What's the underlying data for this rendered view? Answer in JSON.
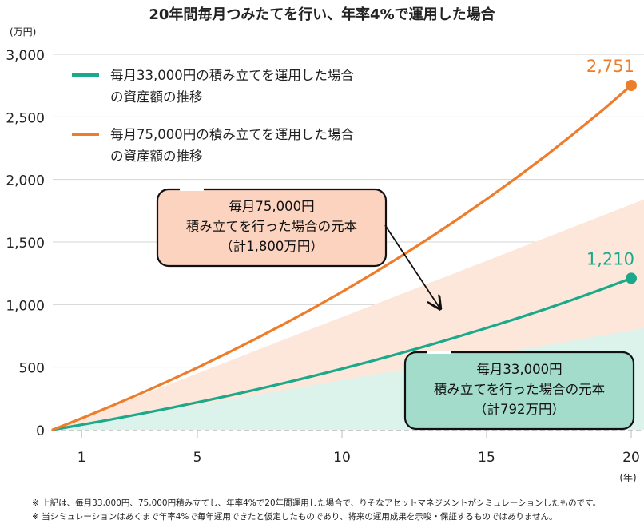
{
  "chart_data": {
    "type": "line",
    "title": "20年間毎月つみたてを行い、年率4%で運用した場合",
    "ylabel": "(万円)",
    "xlabel": "(年)",
    "xlim": [
      0,
      20
    ],
    "ylim": [
      0,
      3000
    ],
    "y_ticks": [
      "3,000",
      "2,500",
      "2,000",
      "1,500",
      "1,000",
      "500",
      "0"
    ],
    "y_tick_values": [
      3000,
      2500,
      2000,
      1500,
      1000,
      500,
      0
    ],
    "x_ticks": [
      "1",
      "5",
      "10",
      "15",
      "20"
    ],
    "x_tick_values": [
      1,
      5,
      10,
      15,
      20
    ],
    "grid": "horizontal",
    "legend_position": "top-left",
    "series": [
      {
        "name": "毎月33,000円の積み立てを運用した場合の資産額の推移",
        "color": "#1aa98a",
        "x": [
          0,
          1,
          2,
          3,
          4,
          5,
          6,
          7,
          8,
          9,
          10,
          11,
          12,
          13,
          14,
          15,
          16,
          17,
          18,
          19,
          20
        ],
        "values": [
          0,
          40,
          82,
          126,
          171,
          219,
          268,
          320,
          373,
          429,
          487,
          547,
          610,
          675,
          743,
          813,
          886,
          962,
          1041,
          1124,
          1210
        ],
        "end_label": "1,210"
      },
      {
        "name": "毎月75,000円の積み立てを運用した場合の資産額の推移",
        "color": "#ee7d2b",
        "x": [
          0,
          1,
          2,
          3,
          4,
          5,
          6,
          7,
          8,
          9,
          10,
          11,
          12,
          13,
          14,
          15,
          16,
          17,
          18,
          19,
          20
        ],
        "values": [
          0,
          92,
          187,
          286,
          389,
          496,
          608,
          724,
          845,
          971,
          1102,
          1238,
          1380,
          1528,
          1682,
          1842,
          2009,
          2182,
          2363,
          2551,
          2751
        ],
        "end_label": "2,751"
      }
    ],
    "principal_areas": [
      {
        "name": "毎月33,000円積み立てを行った場合の元本",
        "values_at_x": {
          "0": 0,
          "20": 792
        },
        "color": "#dcf3ec"
      },
      {
        "name": "毎月75,000円積み立てを行った場合の元本",
        "values_at_x": {
          "0": 0,
          "20": 1800
        },
        "color": "#fde6da"
      }
    ],
    "legend": [
      {
        "line1": "毎月33,000円の積み立てを運用した場合",
        "line2": "の資産額の推移",
        "color": "#1aa98a"
      },
      {
        "line1": "毎月75,000円の積み立てを運用した場合",
        "line2": "の資産額の推移",
        "color": "#ee7d2b"
      }
    ],
    "annotations": [
      {
        "lines": [
          "毎月75,000円",
          "積み立てを行った場合の元本",
          "（計1,800万円）"
        ],
        "fill": "#fcd3bf"
      },
      {
        "lines": [
          "毎月33,000円",
          "積み立てを行った場合の元本",
          "（計792万円）"
        ],
        "fill": "#a3dccb"
      }
    ]
  },
  "notes": [
    "※ 上記は、毎月33,000円、75,000円積み立てし、年率4%で20年間運用した場合で、りそなアセットマネジメントがシミュレーションしたものです。",
    "※ 当シミュレーションはあくまで年率4%で毎年運用できたと仮定したものであり、将来の運用成果を示唆・保証するものではありません。"
  ]
}
